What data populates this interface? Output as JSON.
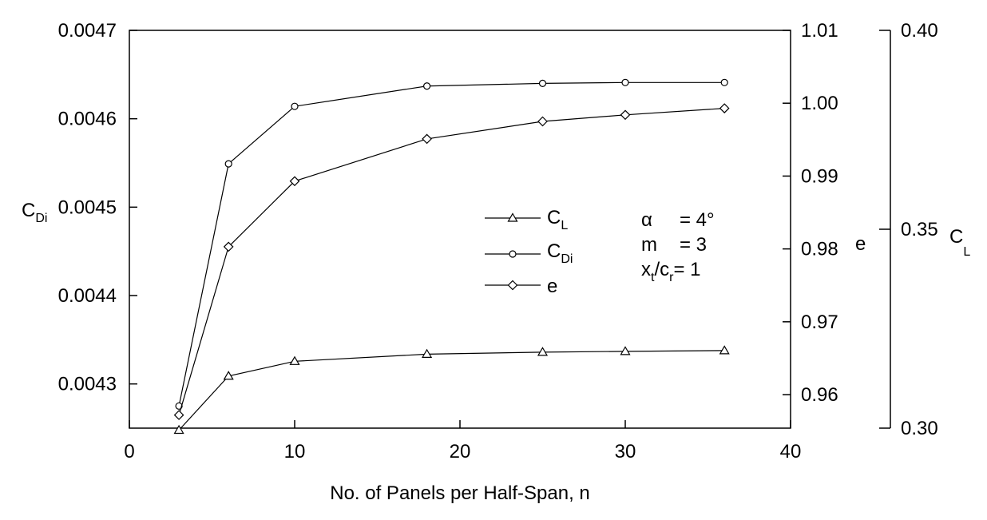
{
  "chart_data": {
    "type": "line",
    "xlabel": "No. of Panels per Half-Span, n",
    "x_ticks": [
      "0",
      "10",
      "20",
      "30",
      "40"
    ],
    "xlim": [
      0,
      40
    ],
    "axes": {
      "cdi": {
        "label_main": "C",
        "label_sub": "Di",
        "ylim": [
          0.00425,
          0.0047
        ],
        "ticks": [
          "0.0043",
          "0.0044",
          "0.0045",
          "0.0046",
          "0.0047"
        ]
      },
      "e": {
        "label": "e",
        "ylim": [
          0.9554,
          1.01
        ],
        "ticks": [
          "0.96",
          "0.97",
          "0.98",
          "0.99",
          "1.00",
          "1.01"
        ]
      },
      "cl": {
        "label_main": "C",
        "label_sub": "L",
        "ylim": [
          0.3,
          0.4
        ],
        "ticks": [
          "0.30",
          "0.35",
          "0.40"
        ]
      }
    },
    "series": [
      {
        "name_main": "C",
        "name_sub": "L",
        "marker": "triangle",
        "axis": "cl",
        "x": [
          3,
          6,
          10,
          18,
          25,
          30,
          36
        ],
        "y": [
          0.2995,
          0.3131,
          0.3168,
          0.3186,
          0.3191,
          0.3193,
          0.3195
        ]
      },
      {
        "name_main": "C",
        "name_sub": "Di",
        "marker": "circle",
        "axis": "cdi",
        "x": [
          3,
          6,
          10,
          18,
          25,
          30,
          36
        ],
        "y": [
          0.004275,
          0.004549,
          0.004614,
          0.004637,
          0.00464,
          0.004641,
          0.004641
        ]
      },
      {
        "name_main": "e",
        "name_sub": "",
        "marker": "diamond",
        "axis": "e",
        "x": [
          3,
          6,
          10,
          18,
          25,
          30,
          36
        ],
        "y": [
          0.9572,
          0.9803,
          0.9893,
          0.9951,
          0.9975,
          0.9984,
          0.9993
        ]
      }
    ],
    "annotation": {
      "alpha_label": "α",
      "alpha_value": "= 4°",
      "m_label": "m",
      "m_value": "= 3",
      "xt_main": "x",
      "xt_sub": "t",
      "cr_main": "/c",
      "cr_sub": "r",
      "ratio_value": "= 1"
    }
  }
}
